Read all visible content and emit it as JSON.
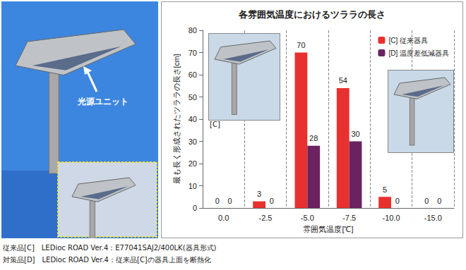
{
  "chart_data": {
    "type": "bar",
    "title": "各雰囲気温度におけるツララの長さ",
    "x_label": "雰囲気温度[℃]",
    "y_label": "最も長く形成されたツララの長さ[cm]",
    "categories": [
      "0.0",
      "-2.5",
      "-5.0",
      "-7.5",
      "-10.0",
      "-15.0"
    ],
    "series": [
      {
        "name": "[C] 従来器具",
        "color": "#e8312f",
        "values": [
          0,
          3,
          70,
          54,
          5,
          0
        ]
      },
      {
        "name": "[D] 温度差低減器具",
        "color": "#6b2360",
        "values": [
          0,
          0,
          28,
          30,
          0,
          0
        ]
      }
    ],
    "ylim": [
      0,
      80
    ],
    "yticks": [
      0,
      10,
      20,
      30,
      40,
      50,
      60,
      70,
      80
    ],
    "grid": true,
    "legend": "upper right",
    "data_labels": true
  },
  "photo": {
    "label": "光源ユニット",
    "inset_label": "[C]"
  },
  "captions": [
    "従来品[C]　LEDioc ROAD Ver.4：E77041SAJ2/400LK(器具形式)",
    "対策品[D]　LEDioc ROAD Ver.4：従来品[C]の器具上面を断熱化"
  ]
}
